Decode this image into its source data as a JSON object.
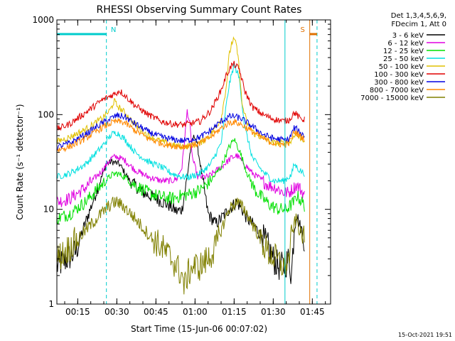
{
  "chart_data": {
    "type": "line",
    "title": "RHESSI Observing Summary Count Rates",
    "xlabel": "Start Time (15-Jun-06 00:07:02)",
    "ylabel": "Count Rate (s⁻¹ detector⁻¹)",
    "yscale": "log",
    "ylim": [
      1,
      1000
    ],
    "xlim_minutes": [
      7.0,
      112.0
    ],
    "yticks": [
      {
        "value": 1,
        "label": "1"
      },
      {
        "value": 10,
        "label": "10"
      },
      {
        "value": 100,
        "label": "100"
      },
      {
        "value": 1000,
        "label": "1000"
      }
    ],
    "xticks": [
      {
        "minute": 15,
        "label": "00:15"
      },
      {
        "minute": 30,
        "label": "00:30"
      },
      {
        "minute": 45,
        "label": "00:45"
      },
      {
        "minute": 60,
        "label": "01:00"
      },
      {
        "minute": 75,
        "label": "01:15"
      },
      {
        "minute": 90,
        "label": "01:30"
      },
      {
        "minute": 105,
        "label": "01:45"
      }
    ],
    "legend_placement": "outside-right",
    "legend_header": [
      "Det 1,3,4,5,6,9,",
      "FDecim 1, Att 0"
    ],
    "series": [
      {
        "name": "3 - 6 keV",
        "color": "#000000",
        "points": [
          [
            7,
            2.5
          ],
          [
            14,
            3.5
          ],
          [
            22,
            15
          ],
          [
            26,
            30
          ],
          [
            28,
            32
          ],
          [
            31,
            30
          ],
          [
            35,
            20
          ],
          [
            40,
            15
          ],
          [
            45,
            13
          ],
          [
            50,
            11
          ],
          [
            53,
            9.5
          ],
          [
            55,
            10
          ],
          [
            57,
            22
          ],
          [
            58,
            38
          ],
          [
            59,
            55
          ],
          [
            60,
            60
          ],
          [
            61,
            45
          ],
          [
            63,
            20
          ],
          [
            65,
            9
          ],
          [
            68,
            7
          ],
          [
            70,
            8
          ],
          [
            73,
            10
          ],
          [
            76,
            12
          ],
          [
            78,
            10
          ],
          [
            80,
            8
          ],
          [
            82,
            7
          ],
          [
            84,
            6
          ],
          [
            86,
            5
          ],
          [
            88,
            4
          ],
          [
            90,
            3
          ],
          [
            92,
            2.5
          ],
          [
            94,
            2.5
          ],
          [
            96,
            3
          ],
          [
            97,
            2
          ],
          [
            98,
            6
          ],
          [
            99,
            9
          ],
          [
            100,
            7
          ],
          [
            101,
            6
          ],
          [
            102,
            4.5
          ]
        ]
      },
      {
        "name": "6 - 12 keV",
        "color": "#e000e0",
        "points": [
          [
            7,
            12
          ],
          [
            12,
            13
          ],
          [
            18,
            17
          ],
          [
            24,
            25
          ],
          [
            28,
            35
          ],
          [
            30,
            36
          ],
          [
            33,
            33
          ],
          [
            37,
            26
          ],
          [
            42,
            22
          ],
          [
            47,
            20
          ],
          [
            51,
            20
          ],
          [
            53,
            21
          ],
          [
            55,
            28
          ],
          [
            56,
            55
          ],
          [
            57,
            110
          ],
          [
            58,
            80
          ],
          [
            59,
            35
          ],
          [
            61,
            22
          ],
          [
            65,
            22
          ],
          [
            70,
            28
          ],
          [
            74,
            35
          ],
          [
            76,
            37
          ],
          [
            79,
            30
          ],
          [
            82,
            24
          ],
          [
            85,
            21
          ],
          [
            88,
            18
          ],
          [
            91,
            17
          ],
          [
            94,
            15
          ],
          [
            96,
            15
          ],
          [
            98,
            17
          ],
          [
            99,
            18
          ],
          [
            100,
            17
          ],
          [
            102,
            14
          ]
        ]
      },
      {
        "name": "12 - 25 keV",
        "color": "#00e000",
        "points": [
          [
            7,
            8
          ],
          [
            12,
            9
          ],
          [
            18,
            12
          ],
          [
            24,
            18
          ],
          [
            28,
            23
          ],
          [
            30,
            24
          ],
          [
            33,
            22
          ],
          [
            37,
            18
          ],
          [
            42,
            15
          ],
          [
            47,
            13.5
          ],
          [
            51,
            13
          ],
          [
            55,
            14
          ],
          [
            58,
            14.5
          ],
          [
            62,
            16
          ],
          [
            66,
            20
          ],
          [
            70,
            28
          ],
          [
            73,
            45
          ],
          [
            75,
            55
          ],
          [
            77,
            42
          ],
          [
            80,
            24
          ],
          [
            83,
            16
          ],
          [
            86,
            13
          ],
          [
            89,
            11
          ],
          [
            92,
            10
          ],
          [
            95,
            10
          ],
          [
            98,
            12
          ],
          [
            99,
            14
          ],
          [
            100,
            13
          ],
          [
            102,
            11
          ]
        ]
      },
      {
        "name": "25 - 50 keV",
        "color": "#00e0e0",
        "points": [
          [
            7,
            22
          ],
          [
            12,
            24
          ],
          [
            18,
            30
          ],
          [
            24,
            45
          ],
          [
            28,
            62
          ],
          [
            30,
            65
          ],
          [
            33,
            55
          ],
          [
            37,
            40
          ],
          [
            42,
            32
          ],
          [
            47,
            28
          ],
          [
            51,
            24
          ],
          [
            55,
            22
          ],
          [
            58,
            22
          ],
          [
            62,
            24
          ],
          [
            66,
            30
          ],
          [
            70,
            50
          ],
          [
            73,
            200
          ],
          [
            75,
            340
          ],
          [
            77,
            240
          ],
          [
            79,
            75
          ],
          [
            82,
            35
          ],
          [
            86,
            25
          ],
          [
            90,
            20
          ],
          [
            94,
            20
          ],
          [
            97,
            23
          ],
          [
            98,
            30
          ],
          [
            99,
            28
          ],
          [
            100,
            26
          ],
          [
            102,
            24
          ]
        ]
      },
      {
        "name": "50 - 100 keV",
        "color": "#e0c000",
        "points": [
          [
            7,
            52
          ],
          [
            12,
            58
          ],
          [
            18,
            70
          ],
          [
            24,
            90
          ],
          [
            27,
            108
          ],
          [
            28,
            120
          ],
          [
            29,
            140
          ],
          [
            30,
            125
          ],
          [
            33,
            105
          ],
          [
            37,
            78
          ],
          [
            42,
            60
          ],
          [
            47,
            52
          ],
          [
            51,
            48
          ],
          [
            55,
            46
          ],
          [
            58,
            47
          ],
          [
            62,
            50
          ],
          [
            66,
            62
          ],
          [
            70,
            90
          ],
          [
            72,
            200
          ],
          [
            73,
            400
          ],
          [
            74,
            570
          ],
          [
            75,
            620
          ],
          [
            76,
            520
          ],
          [
            77,
            300
          ],
          [
            78,
            130
          ],
          [
            80,
            80
          ],
          [
            83,
            62
          ],
          [
            87,
            55
          ],
          [
            90,
            50
          ],
          [
            94,
            50
          ],
          [
            97,
            52
          ],
          [
            98,
            62
          ],
          [
            99,
            60
          ],
          [
            100,
            57
          ],
          [
            102,
            54
          ]
        ]
      },
      {
        "name": "100 - 300 keV",
        "color": "#e00000",
        "points": [
          [
            7,
            70
          ],
          [
            12,
            80
          ],
          [
            18,
            105
          ],
          [
            24,
            140
          ],
          [
            28,
            160
          ],
          [
            30,
            170
          ],
          [
            31,
            180
          ],
          [
            33,
            160
          ],
          [
            37,
            125
          ],
          [
            42,
            100
          ],
          [
            47,
            85
          ],
          [
            51,
            80
          ],
          [
            55,
            78
          ],
          [
            58,
            80
          ],
          [
            62,
            85
          ],
          [
            66,
            110
          ],
          [
            70,
            180
          ],
          [
            72,
            260
          ],
          [
            74,
            330
          ],
          [
            75,
            340
          ],
          [
            77,
            300
          ],
          [
            79,
            180
          ],
          [
            82,
            120
          ],
          [
            86,
            100
          ],
          [
            90,
            90
          ],
          [
            94,
            85
          ],
          [
            96,
            88
          ],
          [
            97,
            95
          ],
          [
            98,
            105
          ],
          [
            99,
            100
          ],
          [
            100,
            92
          ],
          [
            102,
            88
          ]
        ]
      },
      {
        "name": "300 - 800 keV",
        "color": "#0000e0",
        "points": [
          [
            7,
            45
          ],
          [
            12,
            50
          ],
          [
            18,
            62
          ],
          [
            24,
            80
          ],
          [
            28,
            92
          ],
          [
            30,
            98
          ],
          [
            33,
            95
          ],
          [
            37,
            80
          ],
          [
            42,
            66
          ],
          [
            47,
            58
          ],
          [
            51,
            55
          ],
          [
            55,
            53
          ],
          [
            58,
            54
          ],
          [
            62,
            58
          ],
          [
            66,
            68
          ],
          [
            70,
            85
          ],
          [
            73,
            95
          ],
          [
            75,
            96
          ],
          [
            78,
            90
          ],
          [
            82,
            75
          ],
          [
            86,
            62
          ],
          [
            90,
            56
          ],
          [
            94,
            54
          ],
          [
            96,
            55
          ],
          [
            97,
            62
          ],
          [
            98,
            72
          ],
          [
            99,
            70
          ],
          [
            100,
            65
          ],
          [
            102,
            60
          ]
        ]
      },
      {
        "name": "800 - 7000 keV",
        "color": "#ff8800",
        "points": [
          [
            7,
            42
          ],
          [
            12,
            46
          ],
          [
            18,
            56
          ],
          [
            24,
            72
          ],
          [
            28,
            82
          ],
          [
            30,
            85
          ],
          [
            33,
            82
          ],
          [
            37,
            68
          ],
          [
            42,
            56
          ],
          [
            47,
            50
          ],
          [
            51,
            47
          ],
          [
            55,
            46
          ],
          [
            58,
            47
          ],
          [
            62,
            50
          ],
          [
            66,
            58
          ],
          [
            70,
            72
          ],
          [
            73,
            82
          ],
          [
            75,
            84
          ],
          [
            78,
            78
          ],
          [
            82,
            66
          ],
          [
            86,
            56
          ],
          [
            90,
            50
          ],
          [
            94,
            48
          ],
          [
            96,
            50
          ],
          [
            97,
            56
          ],
          [
            98,
            66
          ],
          [
            99,
            64
          ],
          [
            100,
            60
          ],
          [
            102,
            56
          ]
        ]
      },
      {
        "name": "7000 - 15000 keV",
        "color": "#808000",
        "points": [
          [
            7,
            3
          ],
          [
            12,
            4
          ],
          [
            18,
            6
          ],
          [
            24,
            9
          ],
          [
            28,
            11.5
          ],
          [
            30,
            12
          ],
          [
            33,
            10.5
          ],
          [
            37,
            8
          ],
          [
            42,
            5.5
          ],
          [
            47,
            4
          ],
          [
            51,
            3
          ],
          [
            53,
            2.5
          ],
          [
            55,
            2
          ],
          [
            56,
            1.5
          ],
          [
            57,
            2
          ],
          [
            59,
            2.5
          ],
          [
            62,
            2.5
          ],
          [
            65,
            3
          ],
          [
            68,
            4
          ],
          [
            70,
            6
          ],
          [
            73,
            10
          ],
          [
            76,
            12
          ],
          [
            79,
            10
          ],
          [
            82,
            7
          ],
          [
            85,
            5
          ],
          [
            88,
            3.5
          ],
          [
            91,
            3
          ],
          [
            94,
            2.5
          ],
          [
            96,
            3
          ],
          [
            97,
            5
          ],
          [
            98,
            7
          ],
          [
            99,
            8
          ],
          [
            100,
            6
          ],
          [
            102,
            4.5
          ]
        ]
      }
    ],
    "annotations": [
      {
        "label": "N",
        "color": "#00cccc",
        "segment_minutes": [
          7.0,
          26.0
        ]
      },
      {
        "label": "S",
        "color": "#e07000",
        "segment_minutes": [
          104.0,
          106.8
        ]
      }
    ],
    "vertical_markers": [
      {
        "minute": 7.0,
        "color": "#00cccc",
        "style": "solid"
      },
      {
        "minute": 26.0,
        "color": "#00cccc",
        "style": "dashed"
      },
      {
        "minute": 94.5,
        "color": "#00cccc",
        "style": "solid"
      },
      {
        "minute": 104.0,
        "color": "#e07000",
        "style": "solid"
      },
      {
        "minute": 106.8,
        "color": "#00cccc",
        "style": "dashed"
      }
    ],
    "footer_timestamp": "15-Oct-2021 19:51"
  }
}
